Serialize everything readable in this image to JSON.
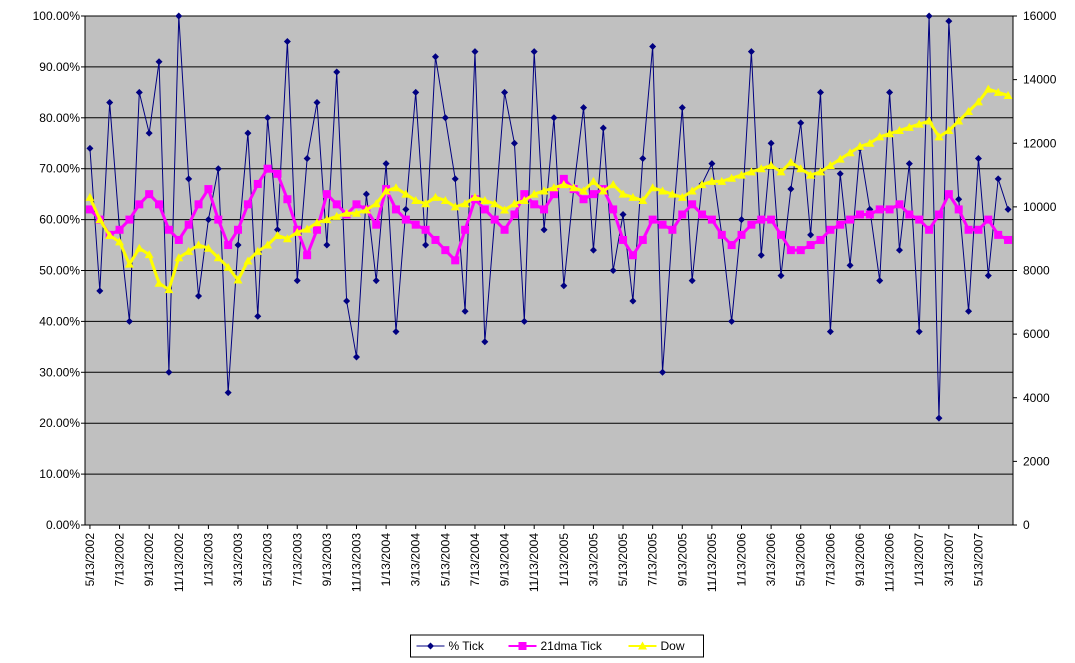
{
  "chart_data": {
    "type": "line",
    "categories": [
      "5/13/2002",
      null,
      null,
      "7/13/2002",
      null,
      null,
      "9/13/2002",
      null,
      null,
      "11/13/2002",
      null,
      null,
      "1/13/2003",
      null,
      null,
      "3/13/2003",
      null,
      null,
      "5/13/2003",
      null,
      null,
      "7/13/2003",
      null,
      null,
      "9/13/2003",
      null,
      null,
      "11/13/2003",
      null,
      null,
      "1/13/2004",
      null,
      null,
      "3/13/2004",
      null,
      null,
      "5/13/2004",
      null,
      null,
      "7/13/2004",
      null,
      null,
      "9/13/2004",
      null,
      null,
      "11/13/2004",
      null,
      null,
      "1/13/2005",
      null,
      null,
      "3/13/2005",
      null,
      null,
      "5/13/2005",
      null,
      null,
      "7/13/2005",
      null,
      null,
      "9/13/2005",
      null,
      null,
      "11/13/2005",
      null,
      null,
      "1/13/2006",
      null,
      null,
      "3/13/2006",
      null,
      null,
      "5/13/2006",
      null,
      null,
      "7/13/2006",
      null,
      null,
      "9/13/2006",
      null,
      null,
      "11/13/2006",
      null,
      null,
      "1/13/2007",
      null,
      null,
      "3/13/2007",
      null,
      null,
      "5/13/2007",
      null,
      null,
      null
    ],
    "series": [
      {
        "name": "% Tick",
        "color": "#000080",
        "marker": "diamond",
        "values": [
          74,
          46,
          83,
          58,
          40,
          85,
          77,
          91,
          30,
          100,
          68,
          45,
          60,
          70,
          26,
          55,
          77,
          41,
          80,
          58,
          95,
          48,
          72,
          83,
          55,
          89,
          44,
          33,
          65,
          48,
          71,
          38,
          62,
          85,
          55,
          92,
          80,
          68,
          42,
          93,
          36,
          60,
          85,
          75,
          40,
          93,
          58,
          80,
          47,
          66,
          82,
          54,
          78,
          50,
          61,
          44,
          72,
          94,
          30,
          58,
          82,
          48,
          67,
          71,
          57,
          40,
          60,
          93,
          53,
          75,
          49,
          66,
          79,
          57,
          85,
          38,
          69,
          51,
          74,
          62,
          48,
          85,
          54,
          71,
          38,
          100,
          21,
          99,
          64,
          42,
          72,
          49,
          68,
          62
        ]
      },
      {
        "name": "21dma Tick",
        "color": "#ff00ff",
        "marker": "square",
        "values": [
          62,
          60,
          57,
          58,
          60,
          63,
          65,
          63,
          58,
          56,
          59,
          63,
          66,
          60,
          55,
          58,
          63,
          67,
          70,
          69,
          64,
          58,
          53,
          58,
          65,
          63,
          61,
          63,
          62,
          59,
          66,
          62,
          60,
          59,
          58,
          56,
          54,
          52,
          58,
          64,
          62,
          60,
          58,
          61,
          65,
          63,
          62,
          65,
          68,
          66,
          64,
          65,
          66,
          62,
          56,
          53,
          56,
          60,
          59,
          58,
          61,
          63,
          61,
          60,
          57,
          55,
          57,
          59,
          60,
          60,
          57,
          54,
          54,
          55,
          56,
          58,
          59,
          60,
          61,
          61,
          62,
          62,
          63,
          61,
          60,
          58,
          61,
          65,
          62,
          58,
          58,
          60,
          57,
          56
        ]
      },
      {
        "name": "Dow",
        "color": "#ffff00",
        "marker": "triangle",
        "axis": "y2",
        "values": [
          10300,
          9600,
          9100,
          8900,
          8200,
          8700,
          8500,
          7600,
          7400,
          8400,
          8600,
          8800,
          8700,
          8400,
          8100,
          7700,
          8300,
          8600,
          8800,
          9100,
          9000,
          9200,
          9300,
          9500,
          9600,
          9700,
          9800,
          9800,
          9900,
          10100,
          10500,
          10600,
          10400,
          10200,
          10100,
          10300,
          10200,
          10000,
          10100,
          10300,
          10200,
          10100,
          9900,
          10100,
          10200,
          10400,
          10500,
          10600,
          10700,
          10600,
          10500,
          10800,
          10500,
          10700,
          10400,
          10300,
          10200,
          10600,
          10500,
          10400,
          10300,
          10500,
          10700,
          10800,
          10800,
          10900,
          11000,
          11100,
          11200,
          11300,
          11100,
          11400,
          11200,
          11000,
          11100,
          11300,
          11500,
          11700,
          11900,
          12000,
          12200,
          12300,
          12400,
          12500,
          12600,
          12700,
          12200,
          12400,
          12700,
          13000,
          13300,
          13700,
          13600,
          13500
        ]
      }
    ],
    "ylim": [
      0,
      100
    ],
    "yticks": [
      {
        "value": 0,
        "label": "0.00%"
      },
      {
        "value": 10,
        "label": "10.00%"
      },
      {
        "value": 20,
        "label": "20.00%"
      },
      {
        "value": 30,
        "label": "30.00%"
      },
      {
        "value": 40,
        "label": "40.00%"
      },
      {
        "value": 50,
        "label": "50.00%"
      },
      {
        "value": 60,
        "label": "60.00%"
      },
      {
        "value": 70,
        "label": "70.00%"
      },
      {
        "value": 80,
        "label": "80.00%"
      },
      {
        "value": 90,
        "label": "90.00%"
      },
      {
        "value": 100,
        "label": "100.00%"
      }
    ],
    "y2lim": [
      0,
      16000
    ],
    "y2ticks": [
      0,
      2000,
      4000,
      6000,
      8000,
      10000,
      12000,
      14000,
      16000
    ],
    "grid": true,
    "plot_background": "#c0c0c0",
    "legend": "bottom"
  }
}
